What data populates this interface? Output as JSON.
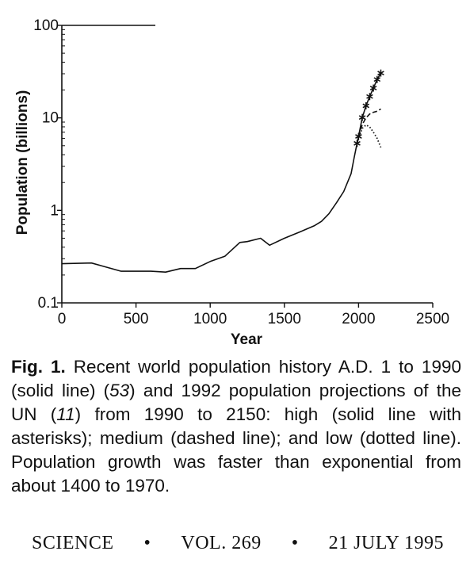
{
  "chart_data": {
    "type": "line",
    "title": "",
    "xlabel": "Year",
    "ylabel": "Population (billions)",
    "x_ticks": [
      "0",
      "500",
      "1000",
      "1500",
      "2000",
      "2500"
    ],
    "y_ticks": [
      "0.1",
      "1",
      "10",
      "100"
    ],
    "xlim": [
      0,
      2500
    ],
    "ylim": [
      0.1,
      100
    ],
    "y_scale": "log",
    "grid": false,
    "series": [
      {
        "style": "solid",
        "x": [
          1,
          200,
          400,
          500,
          600,
          700,
          800,
          900,
          1000,
          1100,
          1200,
          1250,
          1340,
          1400,
          1500,
          1600,
          1700,
          1750,
          1800,
          1850,
          1900,
          1950,
          1970,
          1990
        ],
        "y": [
          0.265,
          0.27,
          0.22,
          0.22,
          0.22,
          0.215,
          0.235,
          0.235,
          0.28,
          0.32,
          0.45,
          0.46,
          0.5,
          0.42,
          0.5,
          0.58,
          0.68,
          0.76,
          0.92,
          1.2,
          1.6,
          2.5,
          3.7,
          5.3
        ]
      },
      {
        "style": "solid-asterisks",
        "x": [
          1990,
          2000,
          2025,
          2050,
          2075,
          2100,
          2125,
          2150
        ],
        "y": [
          5.3,
          6.3,
          10.1,
          13.5,
          17.0,
          21.0,
          26.0,
          30.5
        ]
      },
      {
        "style": "dashed",
        "x": [
          1990,
          2000,
          2025,
          2050,
          2075,
          2100,
          2125,
          2150
        ],
        "y": [
          5.3,
          6.2,
          8.5,
          10.0,
          11.0,
          11.5,
          11.8,
          12.5
        ]
      },
      {
        "style": "dotted",
        "x": [
          1990,
          2000,
          2025,
          2050,
          2075,
          2100,
          2125,
          2150
        ],
        "y": [
          5.3,
          6.0,
          7.7,
          8.4,
          8.0,
          7.0,
          6.0,
          4.8
        ]
      }
    ]
  },
  "caption": {
    "label": "Fig. 1.",
    "pre1": " Recent world population history A.D. 1 to 1990 (solid line) (",
    "ref1": "53",
    "mid": ") and 1992 population projections of the UN (",
    "ref2": "11",
    "post": ") from 1990 to 2150: high (solid line with asterisks); medium (dashed line); and low (dotted line). Population growth was faster than exponential from about 1400 to 1970."
  },
  "footer": {
    "journal": "SCIENCE",
    "bullet": "•",
    "volume": "VOL. 269",
    "date": "21 JULY 1995"
  }
}
